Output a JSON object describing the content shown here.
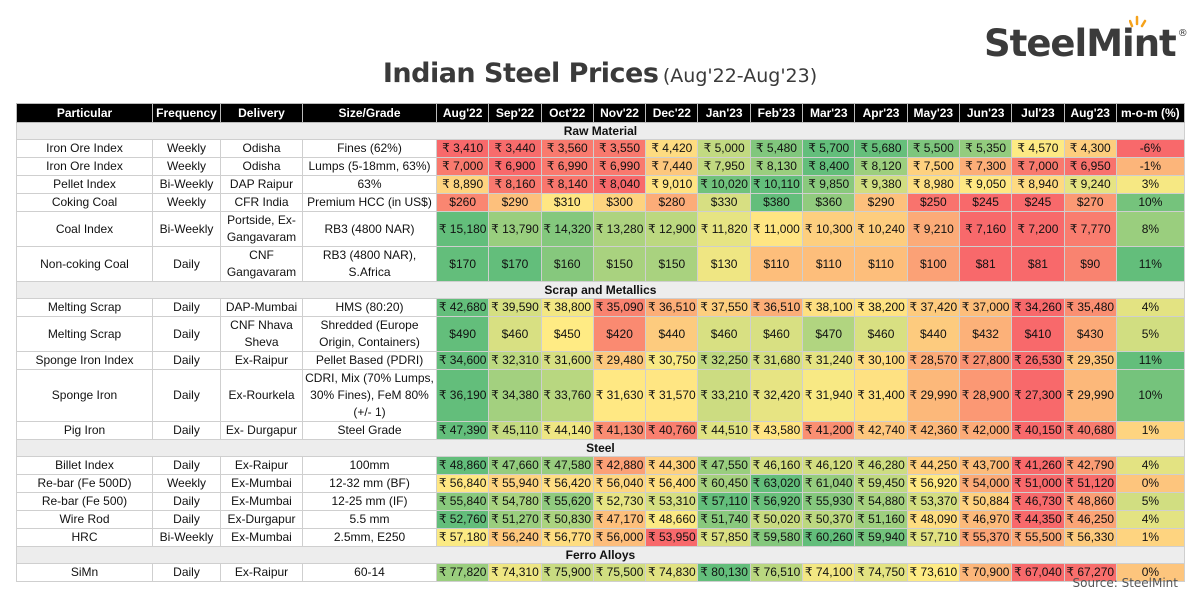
{
  "title": "Indian Steel Prices",
  "subtitle": "(Aug'22-Aug'23)",
  "logo": {
    "text": "SteelMint",
    "mark": "®"
  },
  "source": "Source: SteelMint",
  "colors": {
    "low": "#F8696B",
    "mid": "#FFEB84",
    "high": "#63BE7B",
    "header_bg": "#000000",
    "section_bg": "#EDEDED"
  },
  "chart_data": {
    "type": "table",
    "color_scale": "red-yellow-green per row (low to high)",
    "columns": [
      "Particular",
      "Frequency",
      "Delivery",
      "Size/Grade",
      "Aug'22",
      "Sep'22",
      "Oct'22",
      "Nov'22",
      "Dec'22",
      "Jan'23",
      "Feb'23",
      "Mar'23",
      "Apr'23",
      "May'23",
      "Jun'23",
      "Jul'23",
      "Aug'23",
      "m-o-m (%)"
    ],
    "sections": [
      {
        "name": "Raw Material",
        "rows": [
          {
            "particular": "Iron Ore Index",
            "frequency": "Weekly",
            "delivery": "Odisha",
            "grade": "Fines (62%)",
            "values": [
              "₹ 3,410",
              "₹ 3,440",
              "₹ 3,560",
              "₹ 3,550",
              "₹ 4,420",
              "₹ 5,000",
              "₹ 5,480",
              "₹ 5,700",
              "₹ 5,680",
              "₹ 5,500",
              "₹ 5,350",
              "₹ 4,570",
              "₹ 4,300"
            ],
            "mom": "-6%"
          },
          {
            "particular": "Iron Ore Index",
            "frequency": "Weekly",
            "delivery": "Odisha",
            "grade": "Lumps (5-18mm, 63%)",
            "values": [
              "₹ 7,000",
              "₹ 6,900",
              "₹ 6,990",
              "₹ 6,990",
              "₹ 7,440",
              "₹ 7,950",
              "₹ 8,130",
              "₹ 8,400",
              "₹ 8,120",
              "₹ 7,500",
              "₹ 7,300",
              "₹ 7,000",
              "₹ 6,950"
            ],
            "mom": "-1%"
          },
          {
            "particular": "Pellet Index",
            "frequency": "Bi-Weekly",
            "delivery": "DAP Raipur",
            "grade": "63%",
            "values": [
              "₹ 8,890",
              "₹ 8,160",
              "₹ 8,140",
              "₹ 8,040",
              "₹ 9,010",
              "₹ 10,020",
              "₹ 10,110",
              "₹ 9,850",
              "₹ 9,380",
              "₹ 8,980",
              "₹ 9,050",
              "₹ 8,940",
              "₹ 9,240"
            ],
            "mom": "3%"
          },
          {
            "particular": "Coking Coal",
            "frequency": "Weekly",
            "delivery": "CFR India",
            "grade": "Premium HCC (in US$)",
            "values": [
              "$260",
              "$290",
              "$310",
              "$300",
              "$280",
              "$330",
              "$380",
              "$360",
              "$290",
              "$250",
              "$245",
              "$245",
              "$270"
            ],
            "mom": "10%"
          },
          {
            "particular": "Coal Index",
            "frequency": "Bi-Weekly",
            "delivery": "Portside, Ex-Gangavaram",
            "grade": "RB3 (4800 NAR)",
            "values": [
              "₹ 15,180",
              "₹ 13,790",
              "₹ 14,320",
              "₹ 13,280",
              "₹ 12,900",
              "₹ 11,820",
              "₹ 11,000",
              "₹ 10,300",
              "₹ 10,240",
              "₹ 9,210",
              "₹ 7,160",
              "₹ 7,200",
              "₹ 7,770"
            ],
            "mom": "8%"
          },
          {
            "particular": "Non-coking Coal",
            "frequency": "Daily",
            "delivery": "CNF Gangavaram",
            "grade": "RB3 (4800 NAR), S.Africa",
            "values": [
              "$170",
              "$170",
              "$160",
              "$150",
              "$150",
              "$130",
              "$110",
              "$110",
              "$110",
              "$100",
              "$81",
              "$81",
              "$90"
            ],
            "mom": "11%"
          }
        ]
      },
      {
        "name": "Scrap and Metallics",
        "rows": [
          {
            "particular": "Melting Scrap",
            "frequency": "Daily",
            "delivery": "DAP-Mumbai",
            "grade": "HMS (80:20)",
            "values": [
              "₹ 42,680",
              "₹ 39,590",
              "₹ 38,800",
              "₹ 35,090",
              "₹ 36,510",
              "₹ 37,550",
              "₹ 36,510",
              "₹ 38,100",
              "₹ 38,200",
              "₹ 37,420",
              "₹ 37,000",
              "₹ 34,260",
              "₹ 35,480"
            ],
            "mom": "4%"
          },
          {
            "particular": "Melting Scrap",
            "frequency": "Daily",
            "delivery": "CNF Nhava Sheva",
            "grade": "Shredded (Europe Origin, Containers)",
            "values": [
              "$490",
              "$460",
              "$450",
              "$420",
              "$440",
              "$460",
              "$460",
              "$470",
              "$460",
              "$440",
              "$432",
              "$410",
              "$430"
            ],
            "mom": "5%"
          },
          {
            "particular": "Sponge Iron Index",
            "frequency": "Daily",
            "delivery": "Ex-Raipur",
            "grade": "Pellet Based (PDRI)",
            "values": [
              "₹ 34,600",
              "₹ 32,310",
              "₹ 31,600",
              "₹ 29,480",
              "₹ 30,750",
              "₹ 32,250",
              "₹ 31,680",
              "₹ 31,240",
              "₹ 30,100",
              "₹ 28,570",
              "₹ 27,800",
              "₹ 26,530",
              "₹ 29,350"
            ],
            "mom": "11%"
          },
          {
            "particular": "Sponge Iron",
            "frequency": "Daily",
            "delivery": "Ex-Rourkela",
            "grade": "CDRI, Mix (70% Lumps, 30% Fines), FeM 80% (+/- 1)",
            "values": [
              "₹ 36,190",
              "₹ 34,380",
              "₹ 33,760",
              "₹ 31,630",
              "₹ 31,570",
              "₹ 33,210",
              "₹ 32,420",
              "₹ 31,940",
              "₹ 31,400",
              "₹ 29,990",
              "₹ 28,900",
              "₹ 27,300",
              "₹ 29,990"
            ],
            "mom": "10%"
          },
          {
            "particular": "Pig Iron",
            "frequency": "Daily",
            "delivery": "Ex- Durgapur",
            "grade": "Steel Grade",
            "values": [
              "₹ 47,390",
              "₹ 45,110",
              "₹ 44,140",
              "₹ 41,130",
              "₹ 40,760",
              "₹ 44,510",
              "₹ 43,580",
              "₹ 41,200",
              "₹ 42,740",
              "₹ 42,360",
              "₹ 42,000",
              "₹ 40,150",
              "₹ 40,680"
            ],
            "mom": "1%"
          }
        ]
      },
      {
        "name": "Steel",
        "rows": [
          {
            "particular": "Billet Index",
            "frequency": "Daily",
            "delivery": "Ex-Raipur",
            "grade": "100mm",
            "values": [
              "₹ 48,860",
              "₹ 47,660",
              "₹ 47,580",
              "₹ 42,880",
              "₹ 44,300",
              "₹ 47,550",
              "₹ 46,160",
              "₹ 46,120",
              "₹ 46,280",
              "₹ 44,250",
              "₹ 43,700",
              "₹ 41,260",
              "₹ 42,790"
            ],
            "mom": "4%"
          },
          {
            "particular": "Re-bar (Fe 500D)",
            "frequency": "Weekly",
            "delivery": "Ex-Mumbai",
            "grade": "12-32 mm (BF)",
            "values": [
              "₹ 56,840",
              "₹ 55,940",
              "₹ 56,420",
              "₹ 56,040",
              "₹ 56,400",
              "₹ 60,450",
              "₹ 63,020",
              "₹ 61,040",
              "₹ 59,450",
              "₹ 56,920",
              "₹ 54,000",
              "₹ 51,000",
              "₹ 51,120"
            ],
            "mom": "0%"
          },
          {
            "particular": "Re-bar (Fe 500)",
            "frequency": "Daily",
            "delivery": "Ex-Mumbai",
            "grade": "12-25 mm (IF)",
            "values": [
              "₹ 55,840",
              "₹ 54,780",
              "₹ 55,620",
              "₹ 52,730",
              "₹ 53,310",
              "₹ 57,110",
              "₹ 56,920",
              "₹ 55,930",
              "₹ 54,880",
              "₹ 53,370",
              "₹ 50,884",
              "₹ 46,730",
              "₹ 48,860"
            ],
            "mom": "5%"
          },
          {
            "particular": "Wire Rod",
            "frequency": "Daily",
            "delivery": "Ex-Durgapur",
            "grade": "5.5 mm",
            "values": [
              "₹ 52,760",
              "₹ 51,270",
              "₹ 50,830",
              "₹ 47,170",
              "₹ 48,660",
              "₹ 51,740",
              "₹ 50,020",
              "₹ 50,370",
              "₹ 51,160",
              "₹ 48,090",
              "₹ 46,970",
              "₹ 44,350",
              "₹ 46,250"
            ],
            "mom": "4%"
          },
          {
            "particular": "HRC",
            "frequency": "Bi-Weekly",
            "delivery": "Ex-Mumbai",
            "grade": "2.5mm, E250",
            "values": [
              "₹ 57,180",
              "₹ 56,240",
              "₹ 56,770",
              "₹ 56,000",
              "₹ 53,950",
              "₹ 57,850",
              "₹ 59,580",
              "₹ 60,260",
              "₹ 59,940",
              "₹ 57,710",
              "₹ 55,370",
              "₹ 55,500",
              "₹ 56,330"
            ],
            "mom": "1%"
          }
        ]
      },
      {
        "name": "Ferro Alloys",
        "rows": [
          {
            "particular": "SiMn",
            "frequency": "Daily",
            "delivery": "Ex-Raipur",
            "grade": "60-14",
            "values": [
              "₹ 77,820",
              "₹ 74,310",
              "₹ 75,900",
              "₹ 75,500",
              "₹ 74,830",
              "₹ 80,130",
              "₹ 76,510",
              "₹ 74,100",
              "₹ 74,750",
              "₹ 73,610",
              "₹ 70,900",
              "₹ 67,040",
              "₹ 67,270"
            ],
            "mom": "0%"
          }
        ]
      }
    ]
  }
}
